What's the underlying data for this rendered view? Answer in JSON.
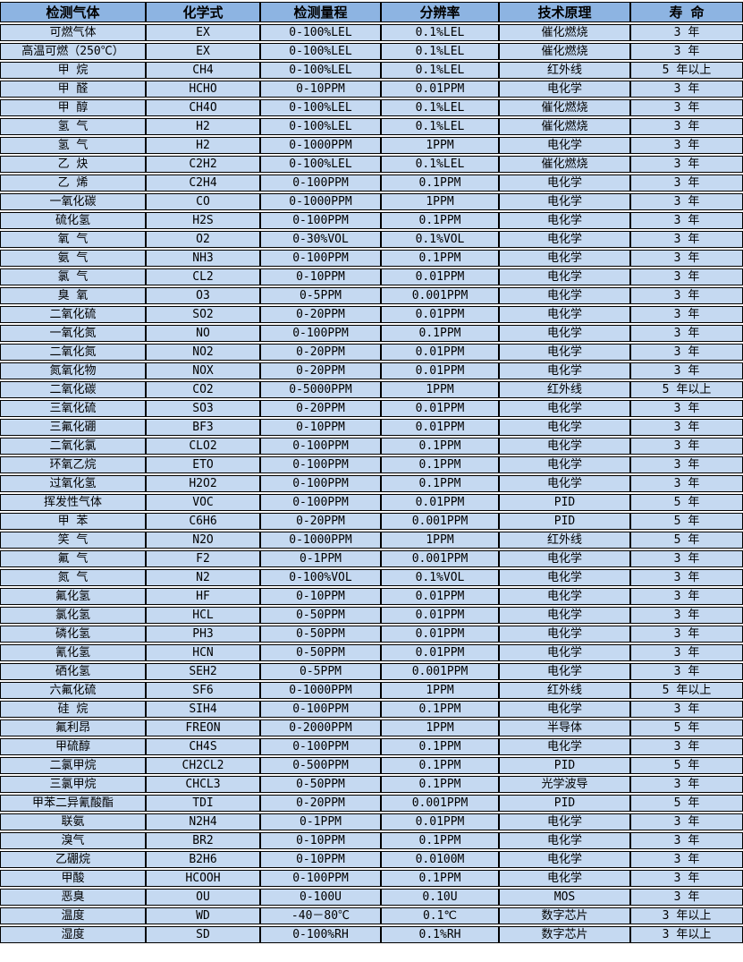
{
  "colors": {
    "header_bg": "#8DB4E2",
    "row_bg": "#C5D9F1",
    "border": "#000000",
    "row_gap": "#FFFFFF",
    "text": "#000000"
  },
  "table": {
    "columns": [
      "检测气体",
      "化学式",
      "检测量程",
      "分辨率",
      "技术原理",
      "寿 命"
    ],
    "rows": [
      [
        "可燃气体",
        "EX",
        "0-100%LEL",
        "0.1%LEL",
        "催化燃烧",
        "3 年"
      ],
      [
        "高温可燃（250℃）",
        "EX",
        "0-100%LEL",
        "0.1%LEL",
        "催化燃烧",
        "3 年"
      ],
      [
        "甲 烷",
        "CH4",
        "0-100%LEL",
        "0.1%LEL",
        "红外线",
        "5 年以上"
      ],
      [
        "甲 醛",
        "HCHO",
        "0-10PPM",
        "0.01PPM",
        "电化学",
        "3 年"
      ],
      [
        "甲 醇",
        "CH4O",
        "0-100%LEL",
        "0.1%LEL",
        "催化燃烧",
        "3 年"
      ],
      [
        "氢 气",
        "H2",
        "0-100%LEL",
        "0.1%LEL",
        "催化燃烧",
        "3 年"
      ],
      [
        "氢 气",
        "H2",
        "0-1000PPM",
        "1PPM",
        "电化学",
        "3 年"
      ],
      [
        "乙 炔",
        "C2H2",
        "0-100%LEL",
        "0.1%LEL",
        "催化燃烧",
        "3 年"
      ],
      [
        "乙 烯",
        "C2H4",
        "0-100PPM",
        "0.1PPM",
        "电化学",
        "3 年"
      ],
      [
        "一氧化碳",
        "CO",
        "0-1000PPM",
        "1PPM",
        "电化学",
        "3 年"
      ],
      [
        "硫化氢",
        "H2S",
        "0-100PPM",
        "0.1PPM",
        "电化学",
        "3 年"
      ],
      [
        "氧 气",
        "O2",
        "0-30%VOL",
        "0.1%VOL",
        "电化学",
        "3 年"
      ],
      [
        "氨 气",
        "NH3",
        "0-100PPM",
        "0.1PPM",
        "电化学",
        "3 年"
      ],
      [
        "氯 气",
        "CL2",
        "0-10PPM",
        "0.01PPM",
        "电化学",
        "3 年"
      ],
      [
        "臭 氧",
        "O3",
        "0-5PPM",
        "0.001PPM",
        "电化学",
        "3 年"
      ],
      [
        "二氧化硫",
        "SO2",
        "0-20PPM",
        "0.01PPM",
        "电化学",
        "3 年"
      ],
      [
        "一氧化氮",
        "NO",
        "0-100PPM",
        "0.1PPM",
        "电化学",
        "3 年"
      ],
      [
        "二氧化氮",
        "NO2",
        "0-20PPM",
        "0.01PPM",
        "电化学",
        "3 年"
      ],
      [
        "氮氧化物",
        "NOX",
        "0-20PPM",
        "0.01PPM",
        "电化学",
        "3 年"
      ],
      [
        "二氧化碳",
        "CO2",
        "0-5000PPM",
        "1PPM",
        "红外线",
        "5 年以上"
      ],
      [
        "三氧化硫",
        "SO3",
        "0-20PPM",
        "0.01PPM",
        "电化学",
        "3 年"
      ],
      [
        "三氟化硼",
        "BF3",
        "0-10PPM",
        "0.01PPM",
        "电化学",
        "3 年"
      ],
      [
        "二氧化氯",
        "CLO2",
        "0-100PPM",
        "0.1PPM",
        "电化学",
        "3 年"
      ],
      [
        "环氧乙烷",
        "ETO",
        "0-100PPM",
        "0.1PPM",
        "电化学",
        "3 年"
      ],
      [
        "过氧化氢",
        "H2O2",
        "0-100PPM",
        "0.1PPM",
        "电化学",
        "3 年"
      ],
      [
        "挥发性气体",
        "VOC",
        "0-100PPM",
        "0.01PPM",
        "PID",
        "5 年"
      ],
      [
        "甲 苯",
        "C6H6",
        "0-20PPM",
        "0.001PPM",
        "PID",
        "5 年"
      ],
      [
        "笑 气",
        "N2O",
        "0-1000PPM",
        "1PPM",
        "红外线",
        "5 年"
      ],
      [
        "氟 气",
        "F2",
        "0-1PPM",
        "0.001PPM",
        "电化学",
        "3 年"
      ],
      [
        "氮 气",
        "N2",
        "0-100%VOL",
        "0.1%VOL",
        "电化学",
        "3 年"
      ],
      [
        "氟化氢",
        "HF",
        "0-10PPM",
        "0.01PPM",
        "电化学",
        "3 年"
      ],
      [
        "氯化氢",
        "HCL",
        "0-50PPM",
        "0.01PPM",
        "电化学",
        "3 年"
      ],
      [
        "磷化氢",
        "PH3",
        "0-50PPM",
        "0.01PPM",
        "电化学",
        "3 年"
      ],
      [
        "氰化氢",
        "HCN",
        "0-50PPM",
        "0.01PPM",
        "电化学",
        "3 年"
      ],
      [
        "硒化氢",
        "SEH2",
        "0-5PPM",
        "0.001PPM",
        "电化学",
        "3 年"
      ],
      [
        "六氟化硫",
        "SF6",
        "0-1000PPM",
        "1PPM",
        "红外线",
        "5 年以上"
      ],
      [
        "硅 烷",
        "SIH4",
        "0-100PPM",
        "0.1PPM",
        "电化学",
        "3 年"
      ],
      [
        "氟利昂",
        "FREON",
        "0-2000PPM",
        "1PPM",
        "半导体",
        "5 年"
      ],
      [
        "甲硫醇",
        "CH4S",
        "0-100PPM",
        "0.1PPM",
        "电化学",
        "3 年"
      ],
      [
        "二氯甲烷",
        "CH2CL2",
        "0-500PPM",
        "0.1PPM",
        "PID",
        "5 年"
      ],
      [
        "三氯甲烷",
        "CHCL3",
        "0-50PPM",
        "0.1PPM",
        "光学波导",
        "3 年"
      ],
      [
        "甲苯二异氰酸酯",
        "TDI",
        "0-20PPM",
        "0.001PPM",
        "PID",
        "5 年"
      ],
      [
        "联氨",
        "N2H4",
        "0-1PPM",
        "0.01PPM",
        "电化学",
        "3 年"
      ],
      [
        "溴气",
        "BR2",
        "0-10PPM",
        "0.1PPM",
        "电化学",
        "3 年"
      ],
      [
        "乙硼烷",
        "B2H6",
        "0-10PPM",
        "0.0100M",
        "电化学",
        "3 年"
      ],
      [
        "甲酸",
        "HCOOH",
        "0-100PPM",
        "0.1PPM",
        "电化学",
        "3 年"
      ],
      [
        "恶臭",
        "OU",
        "0-100U",
        "0.10U",
        "MOS",
        "3 年"
      ],
      [
        "温度",
        "WD",
        "-40－80℃",
        "0.1℃",
        "数字芯片",
        "3 年以上"
      ],
      [
        "湿度",
        "SD",
        "0-100%RH",
        "0.1%RH",
        "数字芯片",
        "3 年以上"
      ]
    ]
  }
}
